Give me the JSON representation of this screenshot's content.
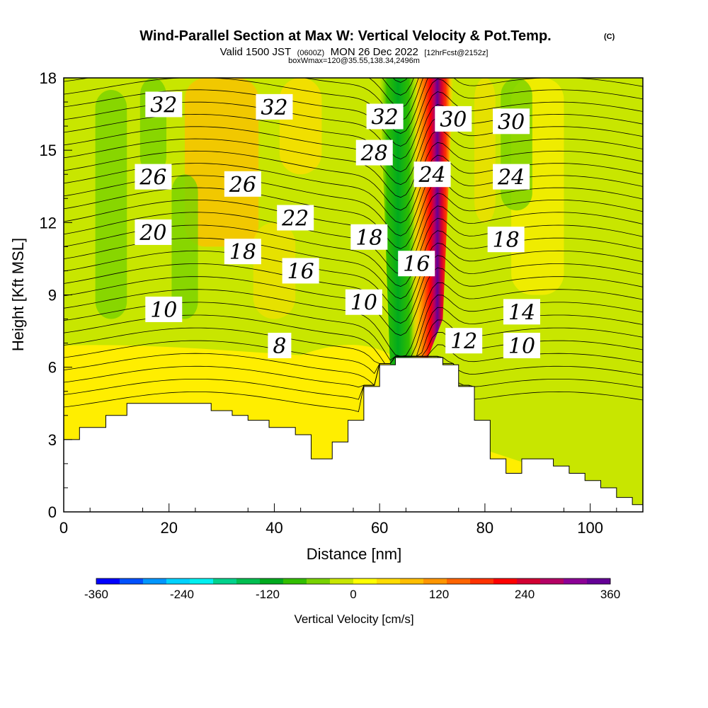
{
  "chart_data": {
    "type": "heatmap",
    "title": "Wind-Parallel Section at Max W: Vertical Velocity & Pot.Temp.",
    "title_mark": "(C)",
    "subtitle_parts": [
      "Valid 1500 JST",
      "(0600Z)",
      "MON 26 Dec 2022",
      "[12hrFcst@2152z]"
    ],
    "subtitle_line2": "boxWmax=120@35.55,138.34,2496m",
    "xlabel": "Distance [nm]",
    "ylabel": "Height [Kft MSL]",
    "xlim": [
      0,
      110
    ],
    "ylim": [
      0,
      18
    ],
    "x_ticks": [
      0,
      20,
      40,
      60,
      80,
      100
    ],
    "y_ticks": [
      0,
      3,
      6,
      9,
      12,
      15,
      18
    ],
    "colorbar": {
      "label": "Vertical Velocity [cm/s]",
      "range": [
        -360,
        360
      ],
      "ticks": [
        -360,
        -240,
        -120,
        0,
        120,
        240,
        360
      ],
      "colors": [
        "#0000ff",
        "#0050ff",
        "#0096ff",
        "#00d2ff",
        "#00f0f0",
        "#00d28c",
        "#00be50",
        "#00aa1e",
        "#32be00",
        "#78d200",
        "#c8e600",
        "#ffff00",
        "#ffdc00",
        "#ffbe00",
        "#ff9600",
        "#ff6400",
        "#ff3200",
        "#ff0000",
        "#d20032",
        "#b40064",
        "#8c0096",
        "#640096"
      ]
    },
    "terrain_profile": {
      "x": [
        0,
        1,
        2,
        3,
        4,
        5,
        6,
        7,
        8,
        9,
        10,
        11,
        12,
        13,
        14,
        15,
        16,
        17,
        18,
        19,
        20,
        21,
        22,
        23,
        24,
        25,
        26,
        27,
        28,
        29,
        30,
        31,
        32,
        33,
        34,
        35,
        36,
        37,
        38,
        39,
        40,
        41,
        42,
        43,
        44,
        45,
        46,
        47,
        48,
        49,
        50,
        51,
        52,
        53,
        54,
        55,
        56,
        57,
        58,
        59,
        60,
        61,
        62,
        63,
        64,
        65,
        66,
        67,
        68,
        69,
        70,
        71,
        72,
        73,
        74,
        75,
        76,
        77,
        78,
        79,
        80,
        81,
        82,
        83,
        84,
        85,
        86,
        87,
        88,
        89,
        90,
        91,
        92,
        93,
        94,
        95,
        96,
        97,
        98,
        99,
        100,
        101,
        102,
        103,
        104,
        105,
        106,
        107,
        108,
        109,
        110
      ],
      "height_kft": [
        3.0,
        3.0,
        3.0,
        3.5,
        3.5,
        3.5,
        3.5,
        3.5,
        4.0,
        4.0,
        4.0,
        4.0,
        4.5,
        4.5,
        4.5,
        4.5,
        4.5,
        4.5,
        4.5,
        4.5,
        4.5,
        4.5,
        4.5,
        4.5,
        4.5,
        4.5,
        4.5,
        4.5,
        4.2,
        4.2,
        4.2,
        4.2,
        4.0,
        4.0,
        4.0,
        3.8,
        3.8,
        3.8,
        3.8,
        3.5,
        3.5,
        3.5,
        3.5,
        3.5,
        3.2,
        3.2,
        3.2,
        2.2,
        2.2,
        2.2,
        2.2,
        2.9,
        2.9,
        2.9,
        3.8,
        3.8,
        3.8,
        5.2,
        5.2,
        5.2,
        6.1,
        6.1,
        6.1,
        6.4,
        6.4,
        6.4,
        6.4,
        6.4,
        6.4,
        6.4,
        6.4,
        6.4,
        6.1,
        6.1,
        6.1,
        5.2,
        5.2,
        5.2,
        3.8,
        3.8,
        3.8,
        2.2,
        2.2,
        2.2,
        1.6,
        1.6,
        1.6,
        2.2,
        2.2,
        2.2,
        2.2,
        2.2,
        2.2,
        1.9,
        1.9,
        1.9,
        1.6,
        1.6,
        1.6,
        1.3,
        1.3,
        1.3,
        1.0,
        1.0,
        1.0,
        0.6,
        0.6,
        0.6,
        0.3,
        0.3,
        0.3
      ]
    },
    "contour_labels": [
      "32",
      "32",
      "32",
      "30",
      "30",
      "28",
      "26",
      "26",
      "24",
      "24",
      "22",
      "20",
      "18",
      "18",
      "18",
      "16",
      "16",
      "14",
      "12",
      "10",
      "10",
      "10",
      "8"
    ],
    "contour_label_positions": [
      {
        "x": 19,
        "y": 16.9
      },
      {
        "x": 40,
        "y": 16.8
      },
      {
        "x": 61,
        "y": 16.4
      },
      {
        "x": 74,
        "y": 16.3
      },
      {
        "x": 85,
        "y": 16.2
      },
      {
        "x": 59,
        "y": 14.9
      },
      {
        "x": 17,
        "y": 13.9
      },
      {
        "x": 34,
        "y": 13.6
      },
      {
        "x": 70,
        "y": 14.0
      },
      {
        "x": 85,
        "y": 13.9
      },
      {
        "x": 44,
        "y": 12.2
      },
      {
        "x": 17,
        "y": 11.6
      },
      {
        "x": 34,
        "y": 10.8
      },
      {
        "x": 58,
        "y": 11.4
      },
      {
        "x": 84,
        "y": 11.3
      },
      {
        "x": 45,
        "y": 10.0
      },
      {
        "x": 67,
        "y": 10.3
      },
      {
        "x": 87,
        "y": 8.3
      },
      {
        "x": 76,
        "y": 7.1
      },
      {
        "x": 19,
        "y": 8.4
      },
      {
        "x": 57,
        "y": 8.7
      },
      {
        "x": 87,
        "y": 6.9
      },
      {
        "x": 41,
        "y": 6.9
      }
    ]
  }
}
